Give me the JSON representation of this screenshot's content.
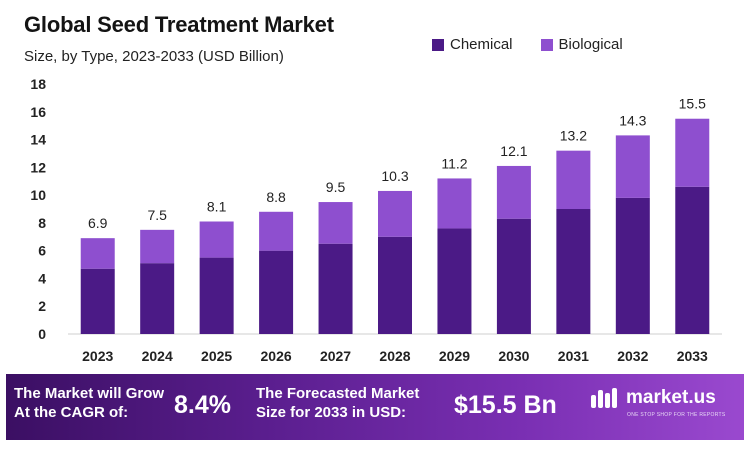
{
  "title": "Global Seed Treatment Market",
  "subtitle": "Size, by Type, 2023-2033 (USD Billion)",
  "colors": {
    "chemical": "#4b1a86",
    "biological": "#8e4fcf"
  },
  "chart_data": {
    "type": "bar",
    "stacked": true,
    "categories": [
      "2023",
      "2024",
      "2025",
      "2026",
      "2027",
      "2028",
      "2029",
      "2030",
      "2031",
      "2032",
      "2033"
    ],
    "series": [
      {
        "name": "Chemical",
        "values": [
          4.7,
          5.1,
          5.5,
          6.0,
          6.5,
          7.0,
          7.6,
          8.3,
          9.0,
          9.8,
          10.6
        ]
      },
      {
        "name": "Biological",
        "values": [
          2.2,
          2.4,
          2.6,
          2.8,
          3.0,
          3.3,
          3.6,
          3.8,
          4.2,
          4.5,
          4.9
        ]
      }
    ],
    "totals": [
      "6.9",
      "7.5",
      "8.1",
      "8.8",
      "9.5",
      "10.3",
      "11.2",
      "12.1",
      "13.2",
      "14.3",
      "15.5"
    ],
    "yticks": [
      "0",
      "2",
      "4",
      "6",
      "8",
      "10",
      "12",
      "14",
      "16",
      "18"
    ],
    "ylim": [
      0,
      18
    ],
    "legend_position": "top-right",
    "grid": false
  },
  "banner": {
    "cagr_label_line1": "The Market will Grow",
    "cagr_label_line2": "At the CAGR of:",
    "cagr_value": "8.4%",
    "forecast_label_line1": "The Forecasted Market",
    "forecast_label_line2": "Size for 2033 in USD:",
    "forecast_value": "$15.5 Bn",
    "logo_name": "market.us",
    "logo_tagline": "ONE STOP SHOP FOR THE REPORTS",
    "logo_icon": "market-us-logo-icon"
  }
}
